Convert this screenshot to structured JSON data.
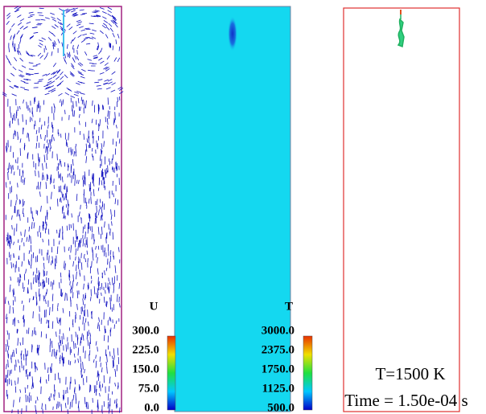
{
  "colorbars": [
    {
      "title": "U",
      "labels": [
        "300.0",
        "225.0",
        "150.0",
        "75.0",
        "0.0"
      ]
    },
    {
      "title": "T",
      "labels": [
        "3000.0",
        "2375.0",
        "1750.0",
        "1125.0",
        "500.0"
      ]
    }
  ],
  "annotation": {
    "temperature": "T=1500 K",
    "time": "Time = 1.50e-04 s"
  }
}
